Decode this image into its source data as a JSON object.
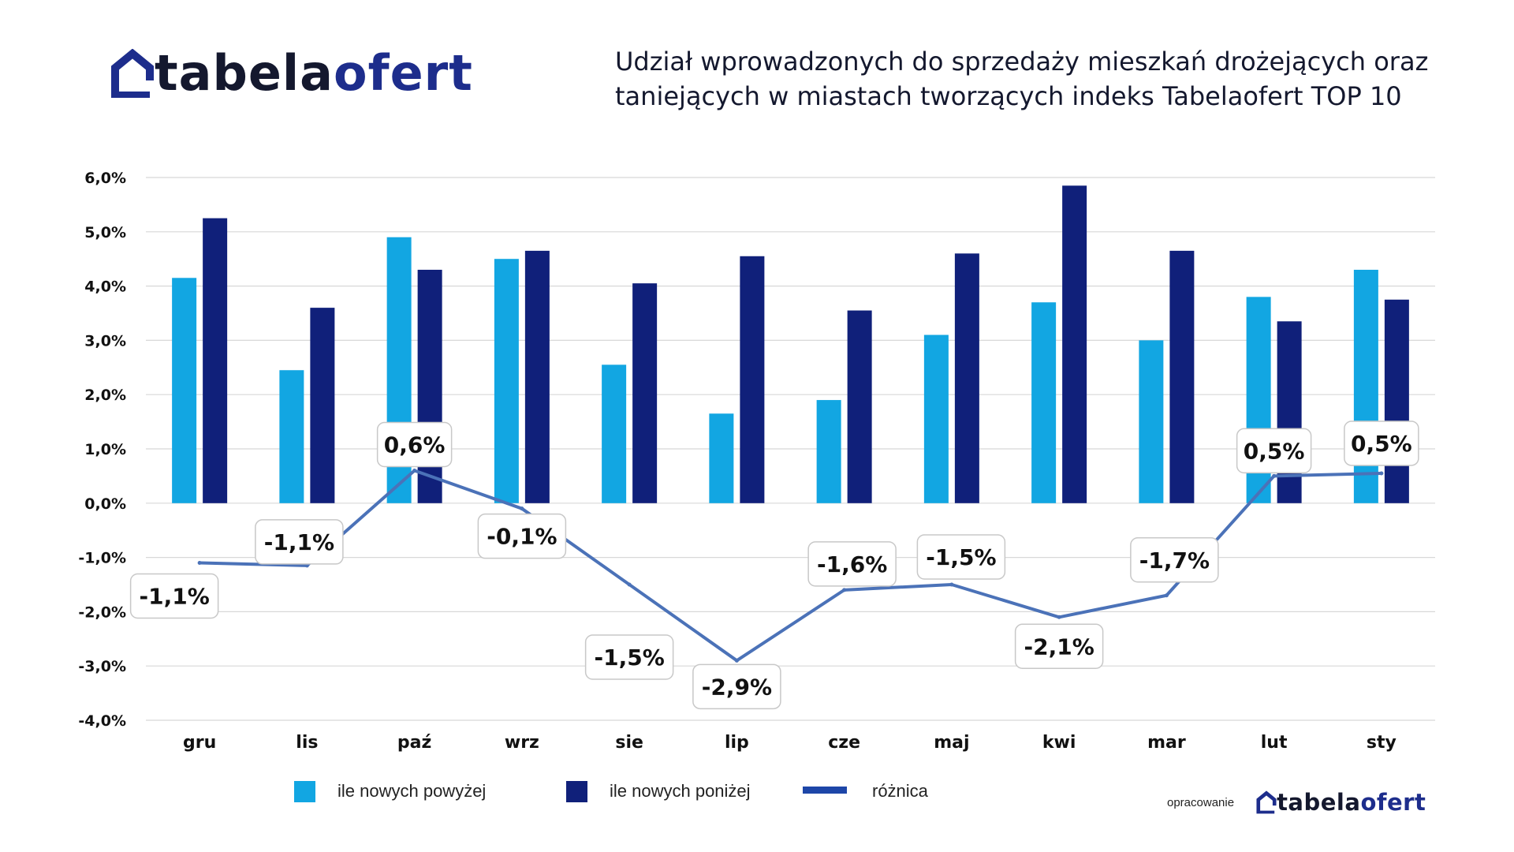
{
  "brand": {
    "part1": "tabela",
    "part2": "ofert",
    "color_dark": "#14182e",
    "color_blue": "#1d2d8c",
    "icon": "house-roof-icon"
  },
  "title": "Udział wprowadzonych do sprzedaży mieszkań drożejących oraz taniejących w miastach tworzących indeks Tabelaofert TOP 10",
  "footer": {
    "label": "opracowanie"
  },
  "chart_data": {
    "type": "bar",
    "categories": [
      "gru",
      "lis",
      "paź",
      "wrz",
      "sie",
      "lip",
      "cze",
      "maj",
      "kwi",
      "mar",
      "lut",
      "sty"
    ],
    "series": [
      {
        "name": "ile nowych powyżej",
        "type": "bar",
        "color": "#12a6e2",
        "values": [
          4.15,
          2.45,
          4.9,
          4.5,
          2.55,
          1.65,
          1.9,
          3.1,
          3.7,
          3.0,
          3.8,
          4.3
        ]
      },
      {
        "name": "ile nowych poniżej",
        "type": "bar",
        "color": "#10207a",
        "values": [
          5.25,
          3.6,
          4.3,
          4.65,
          4.05,
          4.55,
          3.55,
          4.6,
          5.85,
          4.65,
          3.35,
          3.75
        ]
      },
      {
        "name": "różnica",
        "type": "line",
        "color": "#4b72b8",
        "values": [
          -1.1,
          -1.15,
          0.6,
          -0.1,
          -1.5,
          -2.9,
          -1.6,
          -1.5,
          -2.1,
          -1.7,
          0.5,
          0.55
        ],
        "labels": [
          "-1,1%",
          "-1,1%",
          "0,6%",
          "-0,1%",
          "-1,5%",
          "-2,9%",
          "-1,6%",
          "-1,5%",
          "-2,1%",
          "-1,7%",
          "0,5%",
          "0,5%"
        ]
      }
    ],
    "y_ticks": [
      "6,0%",
      "5,0%",
      "4,0%",
      "3,0%",
      "2,0%",
      "1,0%",
      "0,0%",
      "-1,0%",
      "-2,0%",
      "-3,0%",
      "-4,0%"
    ],
    "ylim": [
      -4,
      6
    ],
    "grid": true,
    "legend": "bottom-left"
  }
}
